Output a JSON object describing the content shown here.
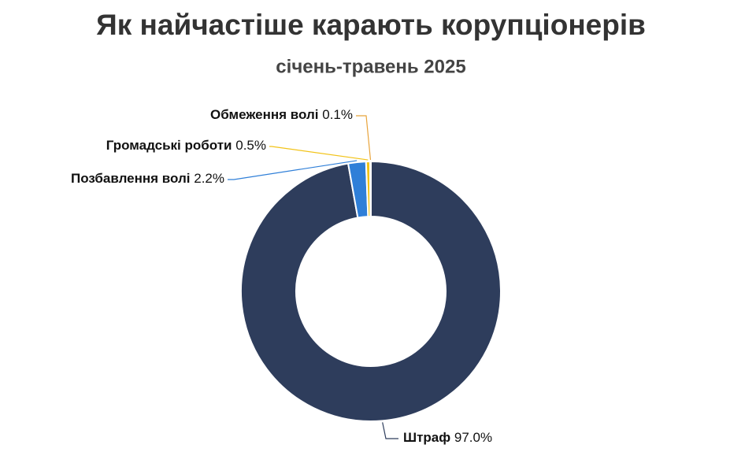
{
  "chart_data": {
    "type": "donut",
    "title": "Як найчастіше карають корупціонерів",
    "subtitle": "січень-травень 2025",
    "categories": [
      "Штраф",
      "Позбавлення волі",
      "Громадські роботи",
      "Обмеження волі"
    ],
    "values": [
      97.0,
      2.2,
      0.5,
      0.1
    ],
    "value_labels": [
      "97.0%",
      "2.2%",
      "0.5%",
      "0.1%"
    ],
    "colors": [
      "#2e3d5c",
      "#2f7fd8",
      "#f2c318",
      "#e8a33a"
    ]
  }
}
